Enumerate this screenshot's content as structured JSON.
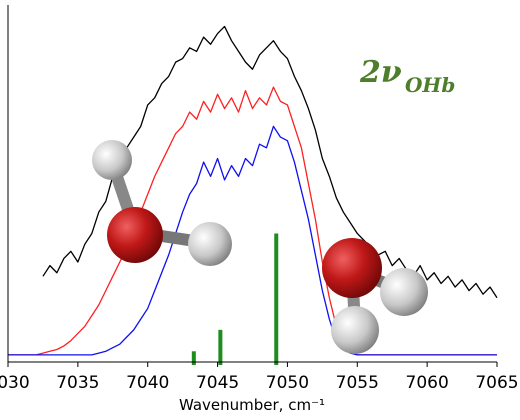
{
  "chart_data": {
    "type": "line",
    "x_label": "Wavenumber, cm⁻¹",
    "annotation": {
      "text": "2ν",
      "subscript": "OHb",
      "color": "#4e7d2b"
    },
    "xlim": [
      7030,
      7065
    ],
    "xticks": [
      7030,
      7035,
      7040,
      7045,
      7050,
      7055,
      7060,
      7065
    ],
    "ylim": [
      0,
      1
    ],
    "x": [
      7030,
      7030.5,
      7031,
      7031.5,
      7032,
      7032.5,
      7033,
      7033.5,
      7034,
      7034.5,
      7035,
      7035.5,
      7036,
      7036.5,
      7037,
      7037.5,
      7038,
      7038.5,
      7039,
      7039.5,
      7040,
      7040.5,
      7041,
      7041.5,
      7042,
      7042.5,
      7043,
      7043.5,
      7044,
      7044.5,
      7045,
      7045.5,
      7046,
      7046.5,
      7047,
      7047.5,
      7048,
      7048.5,
      7049,
      7049.5,
      7050,
      7050.5,
      7051,
      7051.5,
      7052,
      7052.5,
      7053,
      7053.5,
      7054,
      7054.5,
      7055,
      7055.5,
      7056,
      7056.5,
      7057,
      7057.5,
      7058,
      7058.5,
      7059,
      7059.5,
      7060,
      7060.5,
      7061,
      7061.5,
      7062,
      7062.5,
      7063,
      7063.5,
      7064,
      7064.5,
      7065
    ],
    "series": [
      {
        "color": "#000000",
        "values": [
          null,
          null,
          null,
          null,
          null,
          0.24,
          0.27,
          0.25,
          0.29,
          0.31,
          0.28,
          0.33,
          0.36,
          0.42,
          0.45,
          0.52,
          0.55,
          0.6,
          0.63,
          0.66,
          0.72,
          0.74,
          0.78,
          0.8,
          0.84,
          0.85,
          0.88,
          0.87,
          0.91,
          0.89,
          0.92,
          0.94,
          0.9,
          0.87,
          0.84,
          0.82,
          0.86,
          0.88,
          0.9,
          0.87,
          0.85,
          0.8,
          0.76,
          0.71,
          0.65,
          0.57,
          0.52,
          0.46,
          0.42,
          0.39,
          0.36,
          0.34,
          0.32,
          0.3,
          0.31,
          0.27,
          0.29,
          0.26,
          0.24,
          0.27,
          0.23,
          0.25,
          0.22,
          0.24,
          0.21,
          0.23,
          0.2,
          0.22,
          0.19,
          0.21,
          0.18
        ]
      },
      {
        "color": "#ff2020",
        "values": [
          0.02,
          0.02,
          0.02,
          0.02,
          0.02,
          0.025,
          0.03,
          0.035,
          0.045,
          0.06,
          0.08,
          0.1,
          0.13,
          0.16,
          0.2,
          0.24,
          0.28,
          0.32,
          0.37,
          0.42,
          0.47,
          0.52,
          0.56,
          0.6,
          0.64,
          0.66,
          0.7,
          0.68,
          0.73,
          0.7,
          0.75,
          0.71,
          0.74,
          0.7,
          0.76,
          0.71,
          0.74,
          0.72,
          0.77,
          0.73,
          0.72,
          0.66,
          0.6,
          0.5,
          0.4,
          0.28,
          0.18,
          0.1,
          0.05,
          0.03,
          0.02,
          0.02,
          0.02,
          0.02,
          0.02,
          0.02,
          0.02,
          0.02,
          0.02,
          0.02,
          0.02,
          0.02,
          0.02,
          0.02,
          0.02,
          0.02,
          0.02,
          0.02,
          0.02,
          0.02,
          0.02
        ]
      },
      {
        "color": "#1010ee",
        "values": [
          0.02,
          0.02,
          0.02,
          0.02,
          0.02,
          0.02,
          0.02,
          0.02,
          0.02,
          0.02,
          0.02,
          0.02,
          0.02,
          0.025,
          0.03,
          0.04,
          0.05,
          0.07,
          0.09,
          0.12,
          0.15,
          0.2,
          0.25,
          0.3,
          0.36,
          0.42,
          0.47,
          0.5,
          0.56,
          0.52,
          0.57,
          0.51,
          0.55,
          0.52,
          0.57,
          0.55,
          0.61,
          0.6,
          0.66,
          0.63,
          0.62,
          0.56,
          0.48,
          0.4,
          0.3,
          0.2,
          0.12,
          0.06,
          0.035,
          0.025,
          0.02,
          0.02,
          0.02,
          0.02,
          0.02,
          0.02,
          0.02,
          0.02,
          0.02,
          0.02,
          0.02,
          0.02,
          0.02,
          0.02,
          0.02,
          0.02,
          0.02,
          0.02,
          0.02,
          0.02,
          0.02
        ]
      }
    ],
    "sticks": {
      "color": "#1e8c1e",
      "x": [
        7043.3,
        7045.2,
        7049.2
      ],
      "values": [
        0.03,
        0.09,
        0.36
      ]
    }
  }
}
